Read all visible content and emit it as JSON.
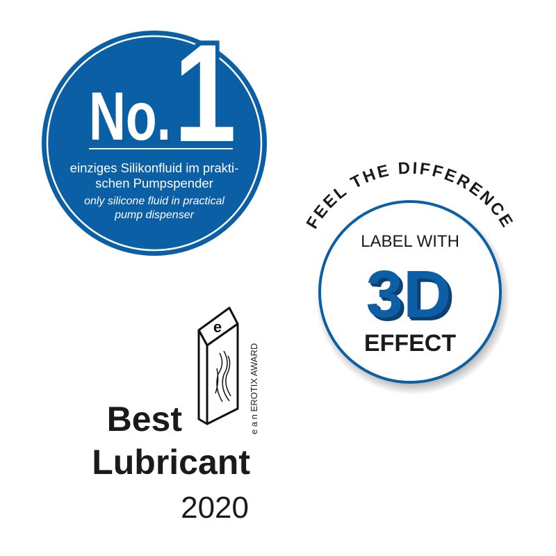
{
  "colors": {
    "brand_blue": "#0b5fa5",
    "text_dark": "#1a1a1a",
    "white": "#ffffff"
  },
  "badge_no1": {
    "prefix": "No.",
    "number": "1",
    "line1_de": "einziges Silikonfluid im prakti-",
    "line2_de": "schen Pumpspender",
    "line1_en": "only silicone fluid in practical",
    "line2_en": "pump dispenser"
  },
  "badge_3d": {
    "arc_text": "FEEL THE DIFFERENCE",
    "top": "LABEL WITH",
    "big": "3D",
    "bottom": "EFFECT"
  },
  "award": {
    "trophy_letter": "e",
    "vertical_text": "e a n  EROTIX AWARD",
    "line1": "Best",
    "line2": "Lubricant",
    "year": "2020"
  }
}
